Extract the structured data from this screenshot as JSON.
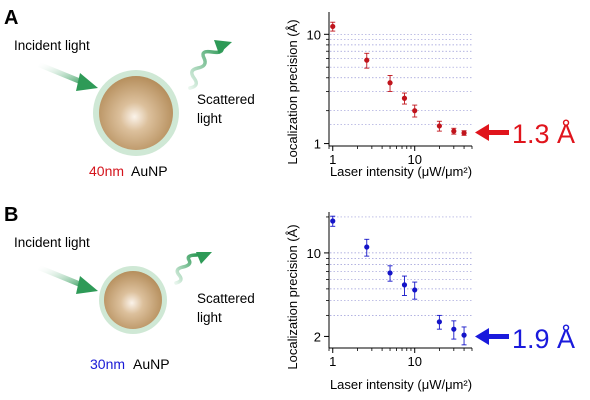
{
  "panels": [
    {
      "letter": "A",
      "incident_label": "Incident light",
      "scattered_label_1": "Scattered",
      "scattered_label_2": "light",
      "size_label": "40nm",
      "size_color": "#d4141c",
      "particle_label": "AuNP",
      "precision_label": "1.3 Å",
      "accent_color": "#e0141c"
    },
    {
      "letter": "B",
      "incident_label": "Incident light",
      "scattered_label_1": "Scattered",
      "scattered_label_2": "light",
      "size_label": "30nm",
      "size_color": "#1a1ad6",
      "particle_label": "AuNP",
      "precision_label": "1.9 Å",
      "accent_color": "#1a1adc"
    }
  ],
  "chart_data": [
    {
      "type": "scatter",
      "xlabel": "Laser intensity (μW/μm²)",
      "ylabel": "Localization precision (Å)",
      "xscale": "log",
      "yscale": "log",
      "xlim": [
        0.9,
        50
      ],
      "ylim": [
        0.95,
        16
      ],
      "xticks": [
        {
          "v": 1,
          "label": "1"
        },
        {
          "v": 10,
          "label": "10"
        }
      ],
      "yticks": [
        {
          "v": 1,
          "label": "1"
        },
        {
          "v": 10,
          "label": "10"
        }
      ],
      "gridlines_y": [
        1.5,
        2,
        3,
        4,
        5,
        6,
        7,
        8,
        9,
        10
      ],
      "grid": "horizontal dotted",
      "marker_color": "#c0141c",
      "points": [
        {
          "x": 1.0,
          "y": 11.8,
          "err": 1.1
        },
        {
          "x": 2.6,
          "y": 5.8,
          "err": 0.9
        },
        {
          "x": 5.0,
          "y": 3.6,
          "err": 0.6
        },
        {
          "x": 7.5,
          "y": 2.6,
          "err": 0.3
        },
        {
          "x": 10.0,
          "y": 2.0,
          "err": 0.25
        },
        {
          "x": 20.0,
          "y": 1.45,
          "err": 0.15
        },
        {
          "x": 30.0,
          "y": 1.3,
          "err": 0.08
        },
        {
          "x": 40.0,
          "y": 1.25,
          "err": 0.06
        }
      ]
    },
    {
      "type": "scatter",
      "xlabel": "Laser intensity (μW/μm²)",
      "ylabel": "Localization precision (Å)",
      "xscale": "log",
      "yscale": "log",
      "xlim": [
        0.9,
        50
      ],
      "ylim": [
        1.6,
        22
      ],
      "xticks": [
        {
          "v": 1,
          "label": "1"
        },
        {
          "v": 10,
          "label": "10"
        }
      ],
      "yticks": [
        {
          "v": 2,
          "label": "2"
        },
        {
          "v": 10,
          "label": "10"
        }
      ],
      "gridlines_y": [
        3,
        4,
        5,
        6,
        7,
        8,
        9,
        10,
        20
      ],
      "grid": "horizontal dotted",
      "marker_color": "#1414c8",
      "points": [
        {
          "x": 1.0,
          "y": 18.5,
          "err": 1.8
        },
        {
          "x": 2.6,
          "y": 11.2,
          "err": 1.8
        },
        {
          "x": 5.0,
          "y": 6.8,
          "err": 1.0
        },
        {
          "x": 7.5,
          "y": 5.4,
          "err": 1.0
        },
        {
          "x": 10.0,
          "y": 4.9,
          "err": 0.8
        },
        {
          "x": 20.0,
          "y": 2.65,
          "err": 0.35
        },
        {
          "x": 30.0,
          "y": 2.3,
          "err": 0.4
        },
        {
          "x": 40.0,
          "y": 2.05,
          "err": 0.35
        }
      ]
    }
  ]
}
